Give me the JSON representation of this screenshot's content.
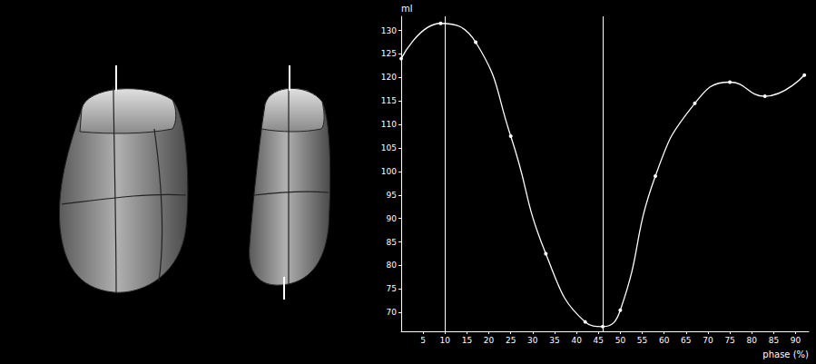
{
  "chart_data": {
    "type": "line",
    "y_label": "ml",
    "x_label": "phase (%)",
    "x": [
      0,
      9,
      17,
      25,
      33,
      42,
      46,
      50,
      58,
      67,
      75,
      83,
      92
    ],
    "values": [
      124,
      131.5,
      127.5,
      107.5,
      82.5,
      68,
      67,
      70.5,
      99,
      114.5,
      119,
      116,
      120.5
    ],
    "xlim": [
      0,
      93
    ],
    "xticks": [
      5,
      10,
      15,
      20,
      25,
      30,
      35,
      40,
      45,
      50,
      55,
      60,
      65,
      70,
      75,
      80,
      85,
      90
    ],
    "ylim": [
      66,
      133
    ],
    "yticks": [
      70,
      75,
      80,
      85,
      90,
      95,
      100,
      105,
      110,
      115,
      120,
      125,
      130
    ],
    "vertical_lines": [
      10,
      46
    ],
    "color": "#ffffff",
    "marker": "circle",
    "line_style": "smooth",
    "grid": false
  }
}
